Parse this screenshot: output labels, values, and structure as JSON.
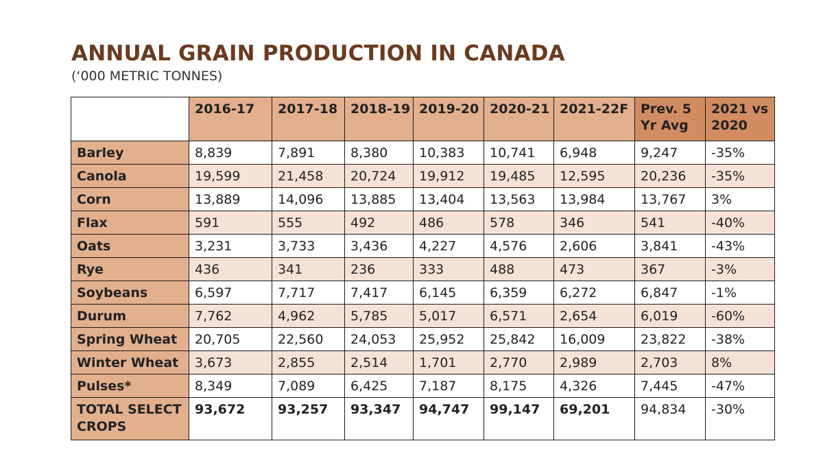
{
  "title": "ANNUAL GRAIN PRODUCTION IN CANADA",
  "subtitle": "(‘000 METRIC TONNES)",
  "colors": {
    "title": "#6b3a1e",
    "header_fill": "#e3b08e",
    "header_fill_dark": "#d28c61",
    "alt_row_fill": "#f5e2d6"
  },
  "chart_data": {
    "type": "table",
    "title": "ANNUAL GRAIN PRODUCTION IN CANADA",
    "subtitle": "(‘000 METRIC TONNES)",
    "columns": [
      "2016-17",
      "2017-18",
      "2018-19",
      "2019-20",
      "2020-21",
      "2021-22F",
      "Prev. 5 Yr Avg",
      "2021 vs 2020"
    ],
    "rows": [
      {
        "label": "Barley",
        "values": [
          "8,839",
          "7,891",
          "8,380",
          "10,383",
          "10,741",
          "6,948",
          "9,247",
          "-35%"
        ]
      },
      {
        "label": "Canola",
        "values": [
          "19,599",
          "21,458",
          "20,724",
          "19,912",
          "19,485",
          "12,595",
          "20,236",
          "-35%"
        ]
      },
      {
        "label": "Corn",
        "values": [
          "13,889",
          "14,096",
          "13,885",
          "13,404",
          "13,563",
          "13,984",
          "13,767",
          "3%"
        ]
      },
      {
        "label": "Flax",
        "values": [
          "591",
          "555",
          "492",
          "486",
          "578",
          "346",
          "541",
          "-40%"
        ]
      },
      {
        "label": "Oats",
        "values": [
          "3,231",
          "3,733",
          "3,436",
          "4,227",
          "4,576",
          "2,606",
          "3,841",
          "-43%"
        ]
      },
      {
        "label": "Rye",
        "values": [
          "436",
          "341",
          "236",
          "333",
          "488",
          "473",
          "367",
          "-3%"
        ]
      },
      {
        "label": "Soybeans",
        "values": [
          "6,597",
          "7,717",
          "7,417",
          "6,145",
          "6,359",
          "6,272",
          "6,847",
          "-1%"
        ]
      },
      {
        "label": "Durum",
        "values": [
          "7,762",
          "4,962",
          "5,785",
          "5,017",
          "6,571",
          "2,654",
          "6,019",
          "-60%"
        ]
      },
      {
        "label": "Spring Wheat",
        "values": [
          "20,705",
          "22,560",
          "24,053",
          "25,952",
          "25,842",
          "16,009",
          "23,822",
          "-38%"
        ]
      },
      {
        "label": "Winter Wheat",
        "values": [
          "3,673",
          "2,855",
          "2,514",
          "1,701",
          "2,770",
          "2,989",
          "2,703",
          "8%"
        ]
      },
      {
        "label": "Pulses*",
        "values": [
          "8,349",
          "7,089",
          "6,425",
          "7,187",
          "8,175",
          "4,326",
          "7,445",
          "-47%"
        ]
      }
    ],
    "total": {
      "label": "TOTAL SELECT CROPS",
      "values": [
        "93,672",
        "93,257",
        "93,347",
        "94,747",
        "99,147",
        "69,201",
        "94,834",
        "-30%"
      ]
    }
  }
}
